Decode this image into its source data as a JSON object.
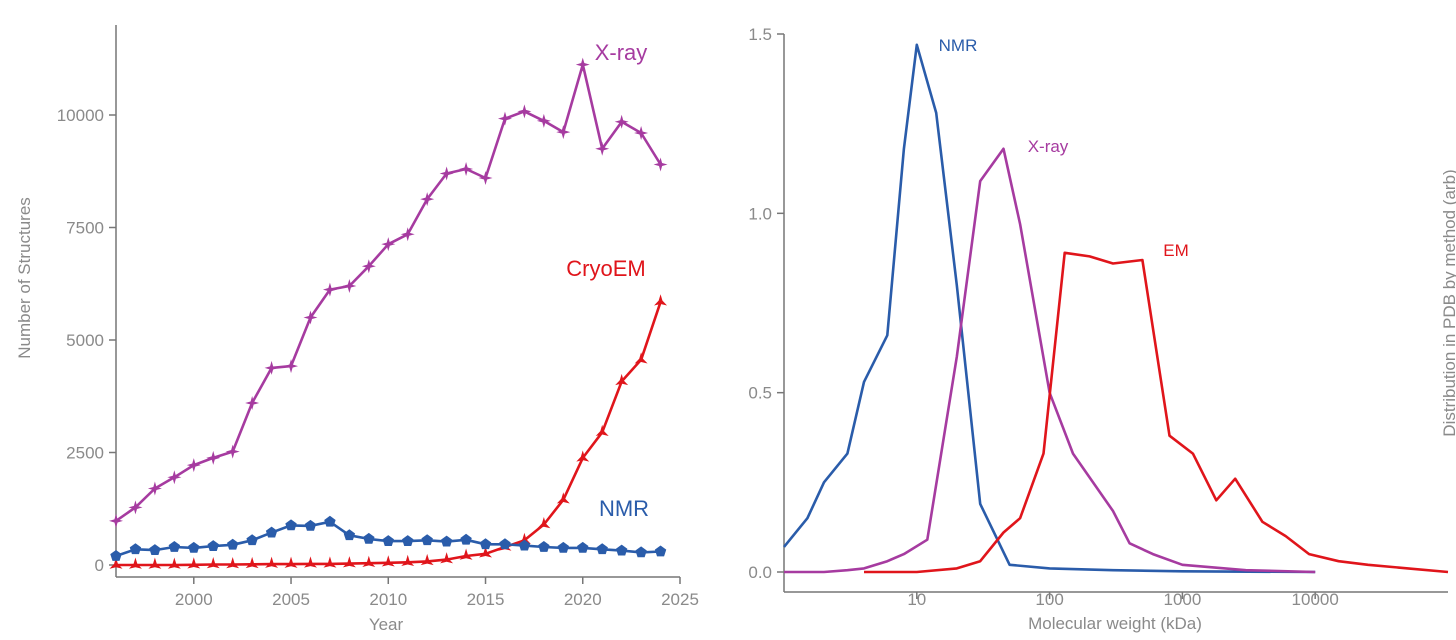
{
  "chart_data": [
    {
      "type": "line",
      "title": "",
      "xlabel": "Year",
      "ylabel": "Number of Structures",
      "xlim": [
        1996,
        2025
      ],
      "ylim": [
        0,
        12000
      ],
      "xticks": [
        2000,
        2005,
        2010,
        2015,
        2020,
        2025
      ],
      "yticks": [
        0,
        2500,
        5000,
        7500,
        10000
      ],
      "grid": false,
      "legend": "inline labels",
      "x": [
        1996,
        1997,
        1998,
        1999,
        2000,
        2001,
        2002,
        2003,
        2004,
        2005,
        2006,
        2007,
        2008,
        2009,
        2010,
        2011,
        2012,
        2013,
        2014,
        2015,
        2016,
        2017,
        2018,
        2019,
        2020,
        2021,
        2022,
        2023,
        2024
      ],
      "series": [
        {
          "name": "X-ray",
          "color": "#a63ba0",
          "marker": "star4",
          "values": [
            980,
            1280,
            1700,
            1950,
            2220,
            2380,
            2520,
            3600,
            4380,
            4420,
            5500,
            6120,
            6200,
            6640,
            7130,
            7350,
            8130,
            8700,
            8800,
            8600,
            9920,
            10080,
            9870,
            9620,
            11120,
            9250,
            9850,
            9600,
            8900
          ]
        },
        {
          "name": "CryoEM",
          "color": "#e0151b",
          "marker": "tri-star",
          "values": [
            0,
            0,
            0,
            0,
            5,
            10,
            10,
            15,
            20,
            20,
            25,
            25,
            30,
            40,
            50,
            60,
            80,
            120,
            200,
            250,
            400,
            550,
            900,
            1450,
            2380,
            2950,
            4080,
            4560,
            5850
          ]
        },
        {
          "name": "NMR",
          "color": "#2a5caa",
          "marker": "pentagon",
          "values": [
            200,
            350,
            330,
            400,
            380,
            420,
            450,
            550,
            720,
            880,
            870,
            960,
            660,
            580,
            530,
            530,
            550,
            520,
            560,
            460,
            460,
            430,
            400,
            380,
            380,
            350,
            320,
            280,
            300
          ]
        }
      ]
    },
    {
      "type": "line",
      "title": "",
      "xlabel": "Molecular weight (kDa)",
      "ylabel": "Distribution in PDB by method (arb)",
      "xscale": "log",
      "xlim": [
        1,
        100000
      ],
      "ylim": [
        0,
        1.5
      ],
      "xticks": [
        10,
        100,
        1000,
        10000
      ],
      "yticks": [
        0.0,
        0.5,
        1.0,
        1.5
      ],
      "ytick_labels": [
        "0.0",
        "0.5",
        "1.0",
        "1.5"
      ],
      "grid": false,
      "legend": "inline labels",
      "series": [
        {
          "name": "NMR",
          "color": "#2a5caa",
          "x": [
            1,
            1.5,
            2,
            3,
            4,
            6,
            8,
            10,
            14,
            20,
            30,
            50,
            100,
            300,
            1000,
            10000
          ],
          "values": [
            0.07,
            0.15,
            0.25,
            0.33,
            0.53,
            0.66,
            1.18,
            1.47,
            1.28,
            0.8,
            0.19,
            0.02,
            0.01,
            0.005,
            0.002,
            0.0
          ]
        },
        {
          "name": "X-ray",
          "color": "#a63ba0",
          "x": [
            1,
            2,
            3,
            4,
            6,
            8,
            12,
            20,
            30,
            45,
            60,
            100,
            150,
            300,
            400,
            600,
            1000,
            3000,
            10000
          ],
          "values": [
            0.0,
            0.0,
            0.005,
            0.01,
            0.03,
            0.05,
            0.09,
            0.6,
            1.09,
            1.18,
            0.97,
            0.5,
            0.33,
            0.17,
            0.08,
            0.05,
            0.02,
            0.005,
            0.0
          ]
        },
        {
          "name": "EM",
          "color": "#e0151b",
          "x": [
            4,
            6,
            10,
            20,
            30,
            45,
            60,
            90,
            130,
            200,
            300,
            500,
            800,
            1200,
            1800,
            2500,
            4000,
            6000,
            9000,
            15000,
            25000,
            50000,
            100000
          ],
          "values": [
            0.0,
            0.0,
            0.0,
            0.01,
            0.03,
            0.11,
            0.15,
            0.33,
            0.89,
            0.88,
            0.86,
            0.87,
            0.38,
            0.33,
            0.2,
            0.26,
            0.14,
            0.1,
            0.05,
            0.03,
            0.02,
            0.01,
            0.0
          ]
        }
      ]
    }
  ]
}
